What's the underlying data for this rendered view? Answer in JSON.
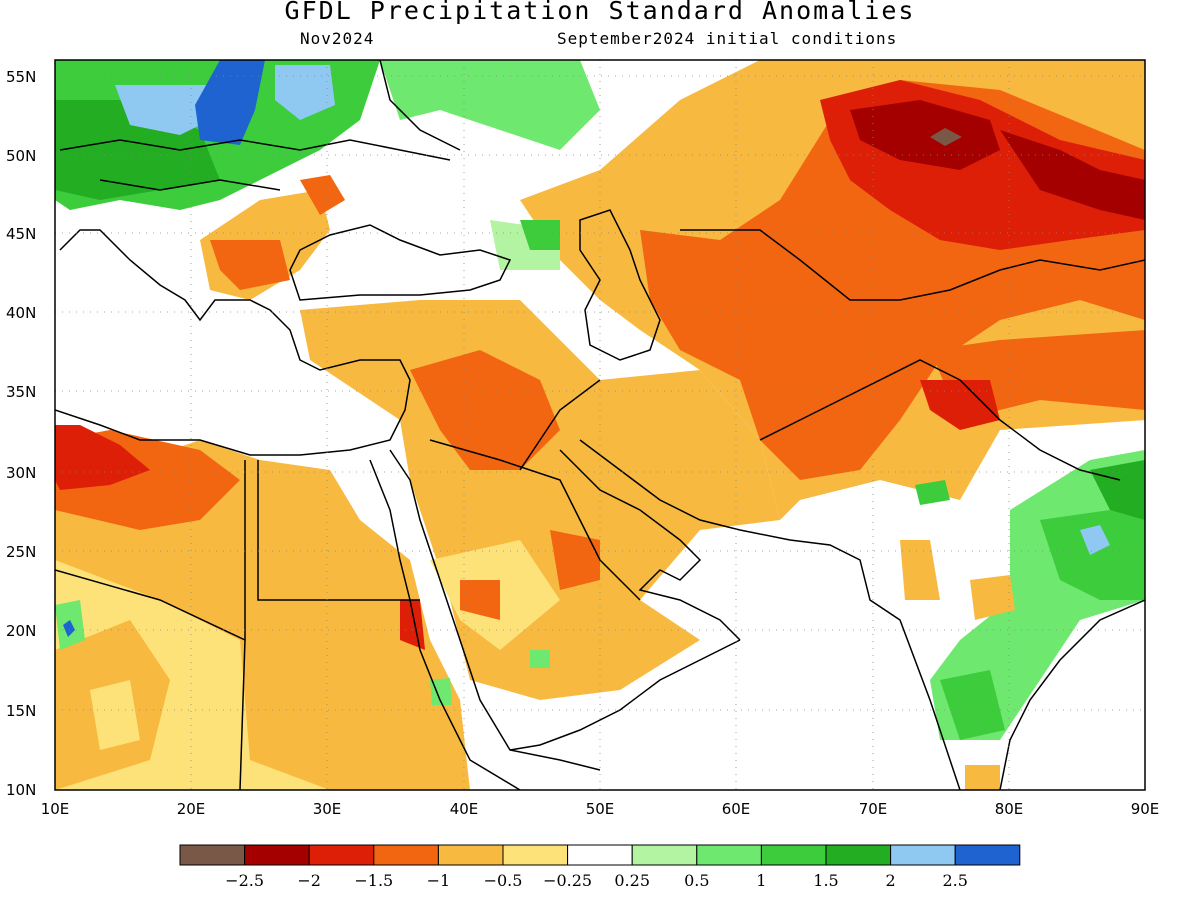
{
  "title": "GFDL Precipitation Standard Anomalies",
  "subtitle_left": "Nov2024",
  "subtitle_right": "September2024 initial conditions",
  "lat_ticks": [
    "10N",
    "15N",
    "20N",
    "25N",
    "30N",
    "35N",
    "40N",
    "45N",
    "50N",
    "55N"
  ],
  "lon_ticks": [
    "10E",
    "20E",
    "30E",
    "40E",
    "50E",
    "60E",
    "70E",
    "80E",
    "90E"
  ],
  "colorbar": {
    "colors": [
      "#7a5848",
      "#a50000",
      "#dd1f08",
      "#f26511",
      "#f8b940",
      "#fde27a",
      "#ffffff",
      "#b2f4a2",
      "#6ee86e",
      "#3ccc3c",
      "#22ad22",
      "#8fc9f2",
      "#1f63d0"
    ],
    "labels": [
      "−2.5",
      "−2",
      "−1.5",
      "−1",
      "−0.5",
      "−0.25",
      "0.25",
      "0.5",
      "1",
      "1.5",
      "2",
      "2.5"
    ]
  }
}
